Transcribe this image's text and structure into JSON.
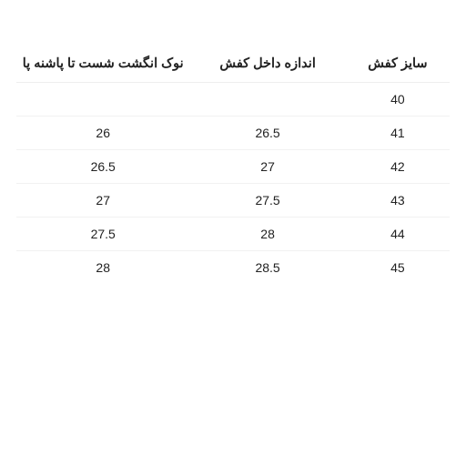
{
  "table": {
    "columns": [
      {
        "key": "size",
        "label": "سایز کفش"
      },
      {
        "key": "inner",
        "label": "اندازه داخل کفش"
      },
      {
        "key": "toe",
        "label": "نوک انگشت شست تا پاشنه پا"
      }
    ],
    "rows": [
      {
        "size": "40",
        "inner": "",
        "toe": ""
      },
      {
        "size": "41",
        "inner": "26.5",
        "toe": "26"
      },
      {
        "size": "42",
        "inner": "27",
        "toe": "26.5"
      },
      {
        "size": "43",
        "inner": "27.5",
        "toe": "27"
      },
      {
        "size": "44",
        "inner": "28",
        "toe": "27.5"
      },
      {
        "size": "45",
        "inner": "28.5",
        "toe": "28"
      }
    ],
    "header_fontweight": "700",
    "cell_fontsize": 14,
    "border_color": "#f1f1f1",
    "background_color": "#ffffff",
    "text_color": "#222222"
  }
}
